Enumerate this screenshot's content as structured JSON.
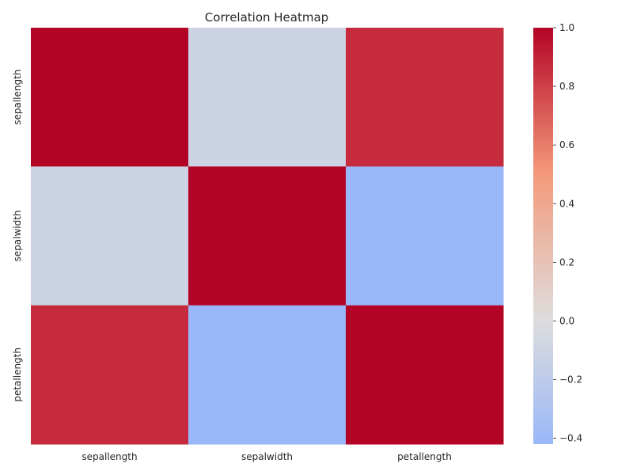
{
  "chart_data": {
    "type": "heatmap",
    "title": "Correlation Heatmap",
    "xlabel": "",
    "ylabel": "",
    "x_categories": [
      "sepallength",
      "sepalwidth",
      "petallength"
    ],
    "y_categories": [
      "sepallength",
      "sepalwidth",
      "petallength"
    ],
    "values": [
      [
        1.0,
        -0.11,
        0.87
      ],
      [
        -0.11,
        1.0,
        -0.42
      ],
      [
        0.87,
        -0.42,
        1.0
      ]
    ],
    "colormap": "coolwarm",
    "colorbar": {
      "min": -0.42,
      "max": 1.0,
      "ticks": [
        -0.4,
        -0.2,
        0.0,
        0.2,
        0.4,
        0.6,
        0.8,
        1.0
      ],
      "tick_labels": [
        "−0.4",
        "−0.2",
        "0.0",
        "0.2",
        "0.4",
        "0.6",
        "0.8",
        "1.0"
      ]
    },
    "grid": false
  }
}
